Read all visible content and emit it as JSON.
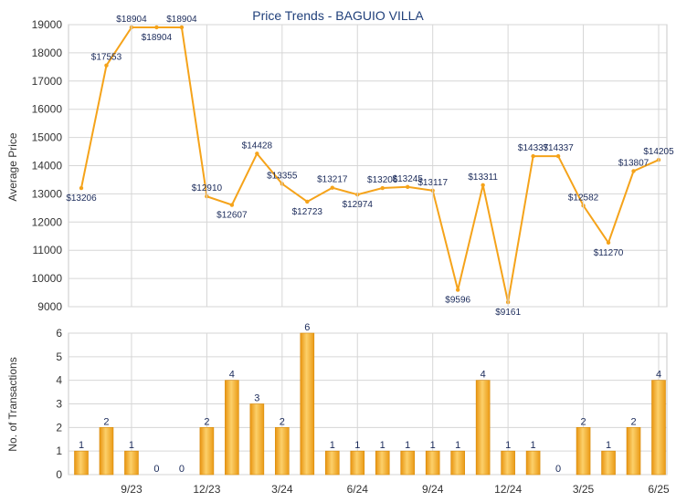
{
  "chart_data": [
    {
      "type": "line",
      "title": "Price Trends - BAGUIO VILLA",
      "ylabel": "Average Price",
      "ylim": [
        9000,
        19000
      ],
      "yticks": [
        9000,
        10000,
        11000,
        12000,
        13000,
        14000,
        15000,
        16000,
        17000,
        18000,
        19000
      ],
      "grid": true,
      "series": [
        {
          "color": "#f5a31a",
          "values": [
            13206,
            17553,
            18904,
            18904,
            18904,
            12910,
            12607,
            14428,
            13355,
            12723,
            13217,
            12974,
            13206,
            13245,
            13117,
            9596,
            13311,
            9161,
            14337,
            14337,
            12582,
            11270,
            13807,
            14205
          ],
          "labels": [
            "$13206",
            "$17553",
            "$18904",
            "$18904",
            "$18904",
            "$12910",
            "$12607",
            "$14428",
            "$13355",
            "$12723",
            "$13217",
            "$12974",
            "$13206",
            "$13245",
            "$13117",
            "$9596",
            "$13311",
            "$9161",
            "$14337",
            "$14337",
            "$12582",
            "$11270",
            "$13807",
            "$14205"
          ]
        }
      ]
    },
    {
      "type": "bar",
      "ylabel": "No. of Transactions",
      "ylim": [
        0,
        6
      ],
      "yticks": [
        0,
        1,
        2,
        3,
        4,
        5,
        6
      ],
      "grid": true,
      "x_tick_labels": [
        "9/23",
        "12/23",
        "3/24",
        "6/24",
        "9/24",
        "12/24",
        "3/25",
        "6/25"
      ],
      "series": [
        {
          "color": "#f5a31a",
          "values": [
            1,
            2,
            1,
            0,
            0,
            2,
            4,
            3,
            2,
            6,
            1,
            1,
            1,
            1,
            1,
            1,
            4,
            1,
            1,
            0,
            2,
            1,
            2,
            4
          ]
        }
      ]
    }
  ]
}
